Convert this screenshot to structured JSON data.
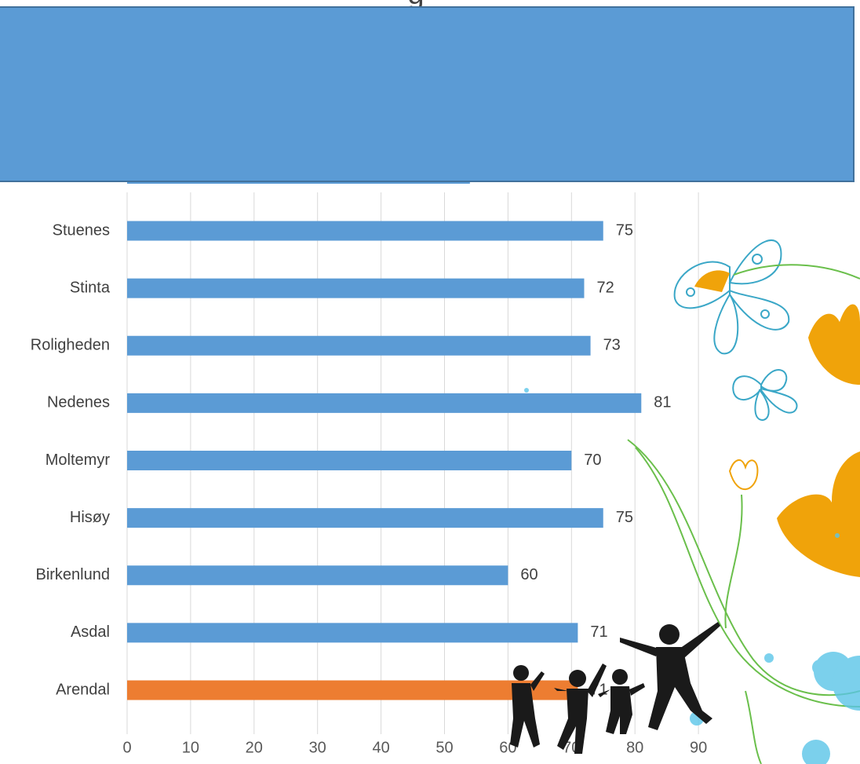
{
  "chart_data": {
    "type": "bar",
    "orientation": "horizontal",
    "title": "",
    "xlabel": "",
    "ylabel": "",
    "categories": [
      "Arendal",
      "Asdal",
      "Birkenlund",
      "Hisøy",
      "Moltemyr",
      "Nedenes",
      "Roligheden",
      "Stinta",
      "Stuenes"
    ],
    "series": [
      {
        "values": [
          71,
          71,
          60,
          75,
          70,
          81,
          73,
          72,
          75
        ]
      }
    ],
    "hidden_partial_bar_value": 54,
    "xlim": [
      0,
      90
    ],
    "xticks": [
      0,
      10,
      20,
      30,
      40,
      50,
      60,
      70,
      80,
      90
    ],
    "grid": true,
    "legend": "none",
    "colors": {
      "bar": "#5b9bd5",
      "highlight_bar": "#ed7d31",
      "highlight_category": "Arendal",
      "grid": "#d9d9d9",
      "cover_box": "#5b9bd5",
      "cover_border": "#41719c"
    }
  },
  "decorations": [
    "butterfly-outline",
    "orange-tulip",
    "green-vine",
    "jumping-children-silhouettes",
    "blue-bubbles"
  ]
}
